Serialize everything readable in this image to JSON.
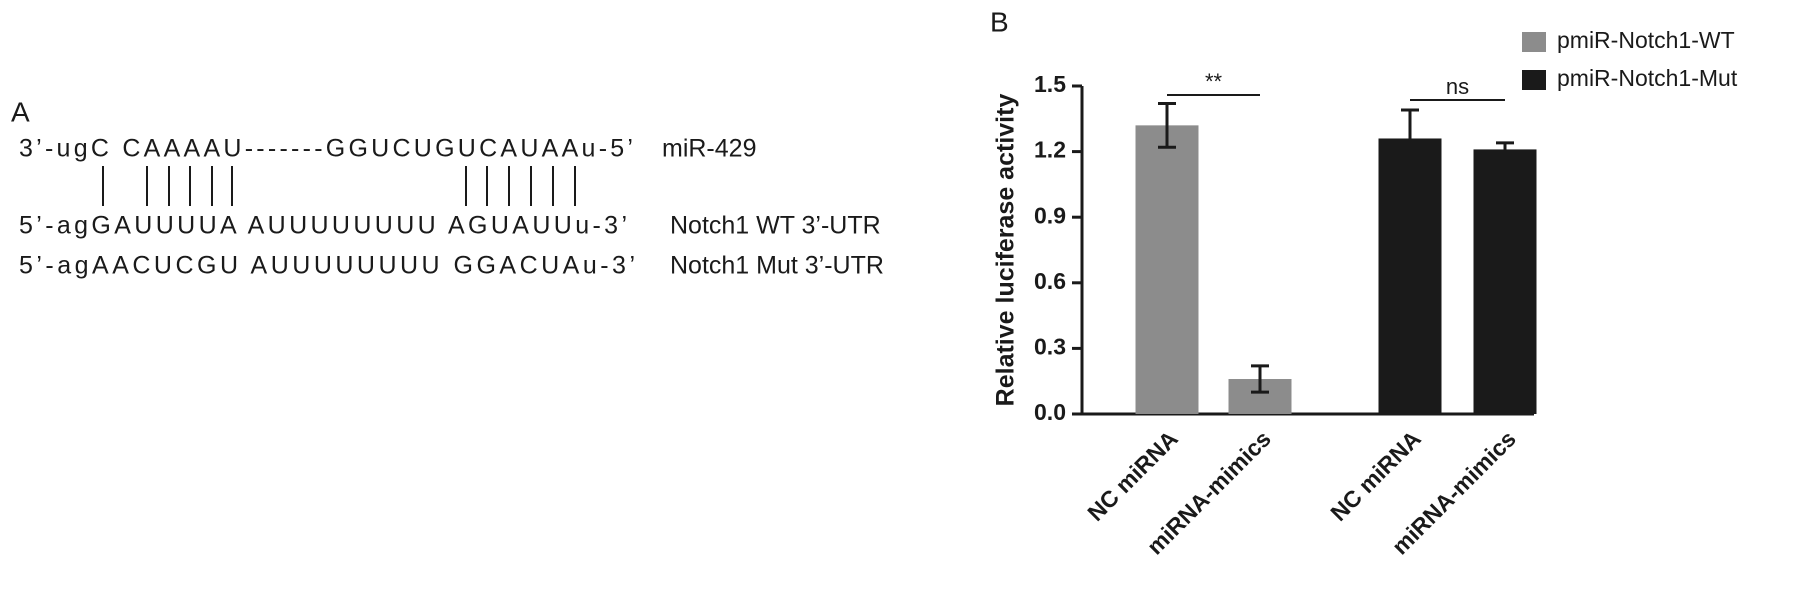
{
  "panel_a": {
    "label": "A",
    "rows": [
      {
        "sequence": "3’-ugC CAAAAU-------GGUCUGUCAUAAu-5’",
        "name": "miR-429"
      },
      {
        "sequence": "5’-agGAUUUUA AUUUUUUUU AGUAUUu-3’",
        "name": "Notch1 WT 3’-UTR"
      },
      {
        "sequence": "5’-agAACUCGU AUUUUUUUU GGACUAu-3’",
        "name": "Notch1 Mut 3’-UTR"
      }
    ]
  },
  "chart_data": {
    "type": "bar",
    "panel_label": "B",
    "ylabel": "Relative luciferase activity",
    "categories": [
      "NC miRNA",
      "miRNA-mimics",
      "NC miRNA",
      "miRNA-mimics"
    ],
    "series": [
      {
        "name": "pmiR-Notch1-WT",
        "color": "#8c8c8c",
        "values": [
          1.32,
          0.16,
          null,
          null
        ],
        "errors": [
          0.1,
          0.06,
          null,
          null
        ]
      },
      {
        "name": "pmiR-Notch1-Mut",
        "color": "#1a1a1a",
        "values": [
          null,
          null,
          1.26,
          1.21
        ],
        "errors": [
          null,
          null,
          0.13,
          0.03
        ]
      }
    ],
    "annotations": [
      "**",
      "ns"
    ],
    "ylim": [
      0,
      1.5
    ],
    "yticks": [
      {
        "value": 0,
        "label": "0.0"
      },
      0.3,
      0.6,
      0.9,
      1.2,
      1.5
    ],
    "legend": "top-right"
  }
}
